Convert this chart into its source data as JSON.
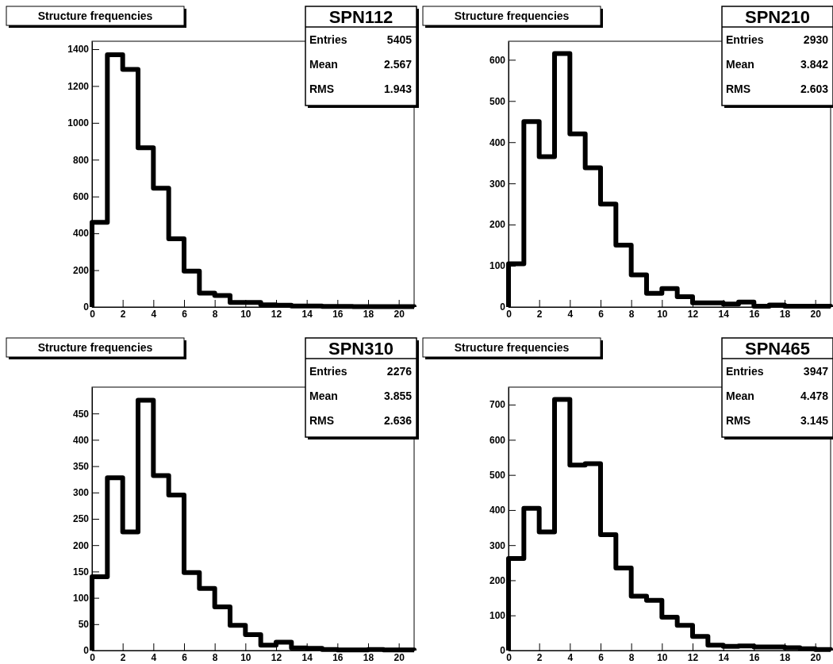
{
  "chart_data": [
    {
      "type": "histogram",
      "title": "Structure frequencies",
      "subtitle": "SPN112",
      "annotations": [
        "Entries 5405",
        "Mean 2.567",
        "RMS 1.943"
      ],
      "bins": [
        0,
        1,
        2,
        3,
        4,
        5,
        6,
        7,
        8,
        9,
        10,
        11,
        12,
        13,
        14,
        15,
        16,
        17,
        18,
        19,
        20,
        21
      ],
      "values": [
        460,
        1370,
        1290,
        865,
        645,
        370,
        195,
        75,
        62,
        25,
        25,
        12,
        10,
        5,
        5,
        3,
        3,
        2,
        2,
        2,
        2
      ],
      "color": "#000000",
      "xlim": [
        0,
        21
      ],
      "xticks": [
        0,
        2,
        4,
        6,
        8,
        10,
        12,
        14,
        16,
        18,
        20
      ],
      "ylim": [
        0,
        1443
      ],
      "yticks": [
        0,
        200,
        400,
        600,
        800,
        1000,
        1200,
        1400
      ],
      "grid": false
    },
    {
      "type": "histogram",
      "title": "Structure frequencies",
      "subtitle": "SPN210",
      "annotations": [
        "Entries 2930",
        "Mean 3.842",
        "RMS 2.603"
      ],
      "bins": [
        0,
        1,
        2,
        3,
        4,
        5,
        6,
        7,
        8,
        9,
        10,
        11,
        12,
        13,
        14,
        15,
        16,
        17,
        18,
        19,
        20,
        21
      ],
      "values": [
        105,
        450,
        365,
        615,
        420,
        338,
        250,
        150,
        78,
        33,
        45,
        25,
        10,
        10,
        7,
        12,
        2,
        5,
        2,
        2,
        2
      ],
      "color": "#000000",
      "xlim": [
        0,
        21
      ],
      "xticks": [
        0,
        2,
        4,
        6,
        8,
        10,
        12,
        14,
        16,
        18,
        20
      ],
      "ylim": [
        0,
        645
      ],
      "yticks": [
        0,
        100,
        200,
        300,
        400,
        500,
        600
      ],
      "grid": false
    },
    {
      "type": "histogram",
      "title": "Structure frequencies",
      "subtitle": "SPN310",
      "annotations": [
        "Entries 2276",
        "Mean 3.855",
        "RMS 2.636"
      ],
      "bins": [
        0,
        1,
        2,
        3,
        4,
        5,
        6,
        7,
        8,
        9,
        10,
        11,
        12,
        13,
        14,
        15,
        16,
        17,
        18,
        19,
        20,
        21
      ],
      "values": [
        140,
        328,
        225,
        475,
        332,
        295,
        148,
        118,
        83,
        48,
        30,
        10,
        16,
        5,
        4,
        2,
        1,
        1,
        2,
        1,
        1
      ],
      "color": "#000000",
      "xlim": [
        0,
        21
      ],
      "xticks": [
        0,
        2,
        4,
        6,
        8,
        10,
        12,
        14,
        16,
        18,
        20
      ],
      "ylim": [
        0,
        500
      ],
      "yticks": [
        0,
        50,
        100,
        150,
        200,
        250,
        300,
        350,
        400,
        450
      ],
      "grid": false
    },
    {
      "type": "histogram",
      "title": "Structure frequencies",
      "subtitle": "SPN465",
      "annotations": [
        "Entries 3947",
        "Mean 4.478",
        "RMS 3.145"
      ],
      "bins": [
        0,
        1,
        2,
        3,
        4,
        5,
        6,
        7,
        8,
        9,
        10,
        11,
        12,
        13,
        14,
        15,
        16,
        17,
        18,
        19,
        20,
        21
      ],
      "values": [
        262,
        405,
        338,
        715,
        528,
        532,
        330,
        235,
        155,
        143,
        95,
        72,
        40,
        15,
        12,
        13,
        10,
        10,
        8,
        5,
        3
      ],
      "color": "#000000",
      "xlim": [
        0,
        21
      ],
      "xticks": [
        0,
        2,
        4,
        6,
        8,
        10,
        12,
        14,
        16,
        18,
        20
      ],
      "ylim": [
        0,
        750
      ],
      "yticks": [
        0,
        100,
        200,
        300,
        400,
        500,
        600,
        700
      ],
      "grid": false
    }
  ]
}
